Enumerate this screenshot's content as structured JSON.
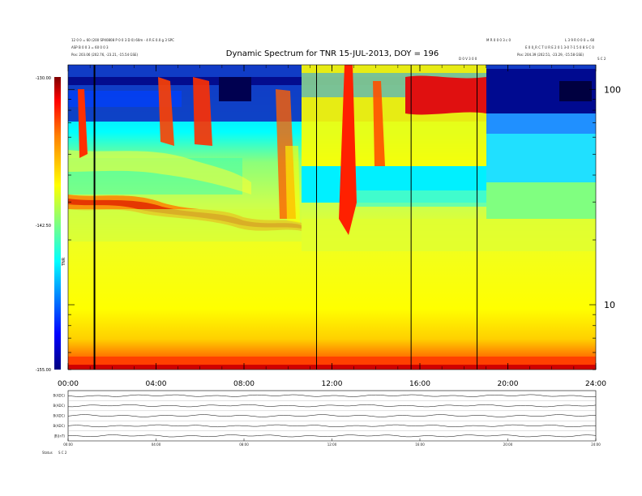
{
  "chart_data": [
    {
      "type": "heatmap",
      "title": "Dynamic Spectrum for TNR 15-JUL-2013, DOY = 196",
      "xlabel": "",
      "ylabel": "",
      "x_tick_labels": [
        "00:00",
        "04:00",
        "08:00",
        "12:00",
        "16:00",
        "20:00",
        "24:00"
      ],
      "x_range_hours": [
        0,
        24
      ],
      "y_scale": "log",
      "y_range": [
        5,
        130
      ],
      "y_ticks": [
        10,
        100
      ],
      "y_tick_labels": [
        "10",
        "100"
      ],
      "colorbar": {
        "label": "TNR",
        "range": [
          -155.0,
          -130.0
        ],
        "tick_labels": [
          "-130.00",
          "-142.50",
          "-155.00"
        ],
        "colors": [
          "#00007f",
          "#0000ff",
          "#00ffff",
          "#7fff7f",
          "#ffff00",
          "#ff7f00",
          "#ff0000",
          "#7f0000"
        ]
      },
      "vertical_markers_hours": [
        1.2,
        11.3,
        15.6,
        18.6
      ]
    },
    {
      "type": "line",
      "panel": "magnetic field components",
      "row_labels": [
        "B(ADC)",
        "B(ADC)",
        "B(ADC)",
        "B(ADC)",
        "|B|(nT)"
      ],
      "x_tick_labels": [
        "00:00",
        "04:00",
        "08:00",
        "12:00",
        "16:00",
        "20:00",
        "24:00"
      ]
    }
  ],
  "header": {
    "left_line1": "12 0 0 = 60 (200 SP40808 P 0 0 3 D 0) 60m - 4 R E 0.0 g 3 SPC",
    "left_line2": "ASP B 0 0 3 = 60 0 0 3",
    "left_line3": "Pos: 203.06 (202.76, -23.21, -15.54 GSE)",
    "right_small1": "M R 0 0 0 3 c 0",
    "right_small2": "L 3 9 R 0 0 0 = 60",
    "right_line2": "E 0 0_R C T U R E 2 0 1 3-0 7-1 5 0 8 S C 0",
    "right_line3": "Pos: 204.39 (202.51, -23.29, -15.58 GSE)",
    "corner_tag": "S C 2",
    "marker_tag": "D 0 V 3 0 0"
  },
  "footer": {
    "label_left": "Status",
    "label_right": "S C 2"
  }
}
